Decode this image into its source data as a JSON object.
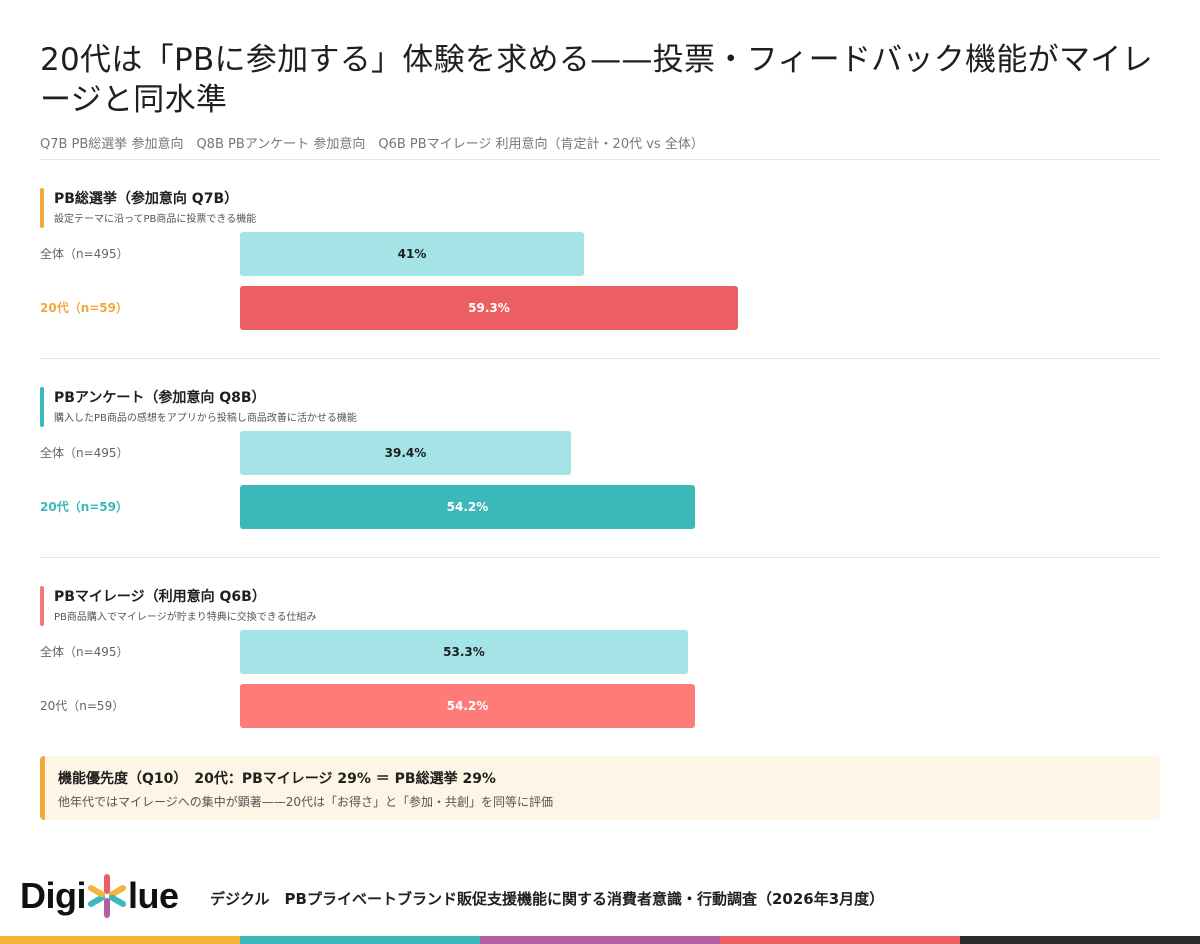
{
  "title": "20代は「PBに参加する」体験を求める——投票・フィードバック機能がマイレージと同水準",
  "subtitle": "Q7B PB総選挙 参加意向　Q8B PBアンケート 参加意向　Q6B PBマイレージ 利用意向（肯定計・20代 vs 全体）",
  "chart_data": {
    "type": "bar",
    "orientation": "horizontal",
    "xlim": [
      0,
      100
    ],
    "groups": [
      {
        "title": "PB総選挙（参加意向 Q7B）",
        "description": "設定テーマに沿ってPB商品に投票できる機能",
        "accent": "#f2a93b",
        "rows": [
          {
            "label": "全体（n=495）",
            "value": 41,
            "value_label": "41%",
            "color": "#a4e4e6",
            "text_color": "#1f1f1f",
            "label_color": "#666666",
            "highlight": false
          },
          {
            "label": "20代（n=59）",
            "value": 59.3,
            "value_label": "59.3%",
            "color": "#eb5e62",
            "text_color": "#ffffff",
            "label_color": "#f2a93b",
            "highlight": true
          }
        ]
      },
      {
        "title": "PBアンケート（参加意向 Q8B）",
        "description": "購入したPB商品の感想をアプリから投稿し商品改善に活かせる機能",
        "accent": "#3bb8b9",
        "rows": [
          {
            "label": "全体（n=495）",
            "value": 39.4,
            "value_label": "39.4%",
            "color": "#a4e4e6",
            "text_color": "#1f1f1f",
            "label_color": "#666666",
            "highlight": false
          },
          {
            "label": "20代（n=59）",
            "value": 54.2,
            "value_label": "54.2%",
            "color": "#3bb8b9",
            "text_color": "#ffffff",
            "label_color": "#3bb8b9",
            "highlight": true
          }
        ]
      },
      {
        "title": "PBマイレージ（利用意向 Q6B）",
        "description": "PB商品購入でマイレージが貯まり特典に交換できる仕組み",
        "accent": "#f47a78",
        "rows": [
          {
            "label": "全体（n=495）",
            "value": 53.3,
            "value_label": "53.3%",
            "color": "#a4e4e6",
            "text_color": "#1f1f1f",
            "label_color": "#666666",
            "highlight": false
          },
          {
            "label": "20代（n=59）",
            "value": 54.2,
            "value_label": "54.2%",
            "color": "#fd7b78",
            "text_color": "#ffffff",
            "label_color": "#666666",
            "highlight": false
          }
        ]
      }
    ]
  },
  "note": {
    "title": "機能優先度（Q10）　20代：PBマイレージ 29% ＝ PB総選挙 29%",
    "text": "他年代ではマイレージへの集中が顕著——20代は「お得さ」と「参加・共創」を同等に評価"
  },
  "footer": {
    "logo_left": "Digi",
    "logo_right": "lue",
    "logo_icon": "asterisk-star-icon",
    "text": "デジクル　PBプライベートブランド販促支援機能に関する消費者意識・行動調査（2026年3月度）",
    "stripe_colors": [
      "#f2b53a",
      "#3bb8b9",
      "#b05fa0",
      "#eb5e62",
      "#2b2b2b"
    ]
  },
  "colors": {
    "accent_orange": "#f2a93b",
    "accent_teal": "#3bb8b9",
    "accent_red": "#eb5e62",
    "note_bg": "#fdf6e6"
  }
}
